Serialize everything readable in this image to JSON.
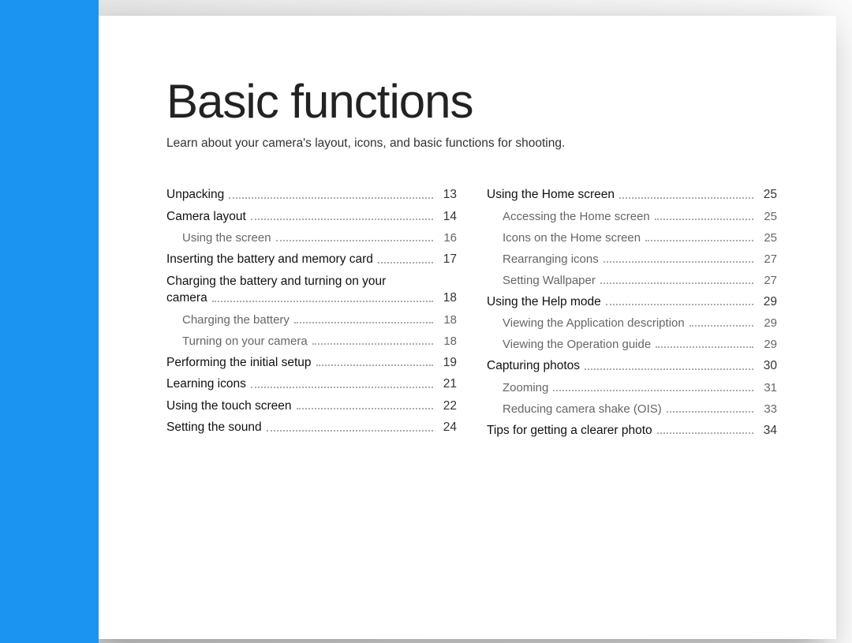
{
  "colors": {
    "blue": "#1a94f0",
    "page_bg": "#ffffff",
    "text": "#333333",
    "sub_text": "#666666",
    "dot_color": "#aaaaaa",
    "bg_gradient_from": "#e6e6e6",
    "bg_gradient_to": "#fafafa"
  },
  "typography": {
    "title_fontsize": 60,
    "title_weight": 300,
    "body_fontsize": 15.5,
    "sub_fontsize": 15
  },
  "title": "Basic functions",
  "subtitle": "Learn about your camera's layout, icons, and basic functions for shooting.",
  "toc": {
    "left": [
      {
        "label": "Unpacking",
        "page": "13",
        "bold": true
      },
      {
        "label": "Camera layout",
        "page": "14",
        "bold": true
      },
      {
        "label": "Using the screen",
        "page": "16",
        "sub": true
      },
      {
        "label": "Inserting the battery and memory card",
        "page": "17",
        "bold": true
      },
      {
        "label_lines": [
          "Charging the battery and turning on your",
          "camera"
        ],
        "page": "18",
        "bold": true
      },
      {
        "label": "Charging the battery",
        "page": "18",
        "sub": true
      },
      {
        "label": "Turning on your camera",
        "page": "18",
        "sub": true
      },
      {
        "label": "Performing the initial setup",
        "page": "19",
        "bold": true
      },
      {
        "label": "Learning icons",
        "page": "21",
        "bold": true
      },
      {
        "label": "Using the touch screen",
        "page": "22",
        "bold": true
      },
      {
        "label": "Setting the sound",
        "page": "24",
        "bold": true
      }
    ],
    "right": [
      {
        "label": "Using the Home screen",
        "page": "25",
        "bold": true
      },
      {
        "label": "Accessing the Home screen",
        "page": "25",
        "sub": true
      },
      {
        "label": "Icons on the Home screen",
        "page": "25",
        "sub": true
      },
      {
        "label": "Rearranging icons",
        "page": "27",
        "sub": true
      },
      {
        "label": "Setting Wallpaper",
        "page": "27",
        "sub": true
      },
      {
        "label": "Using the Help mode",
        "page": "29",
        "bold": true
      },
      {
        "label": "Viewing the Application description",
        "page": "29",
        "sub": true
      },
      {
        "label": "Viewing the Operation guide",
        "page": "29",
        "sub": true
      },
      {
        "label": "Capturing photos",
        "page": "30",
        "bold": true
      },
      {
        "label": "Zooming",
        "page": "31",
        "sub": true
      },
      {
        "label": "Reducing camera shake (OIS)",
        "page": "33",
        "sub": true
      },
      {
        "label": "Tips for getting a clearer photo",
        "page": "34",
        "bold": true
      }
    ]
  }
}
